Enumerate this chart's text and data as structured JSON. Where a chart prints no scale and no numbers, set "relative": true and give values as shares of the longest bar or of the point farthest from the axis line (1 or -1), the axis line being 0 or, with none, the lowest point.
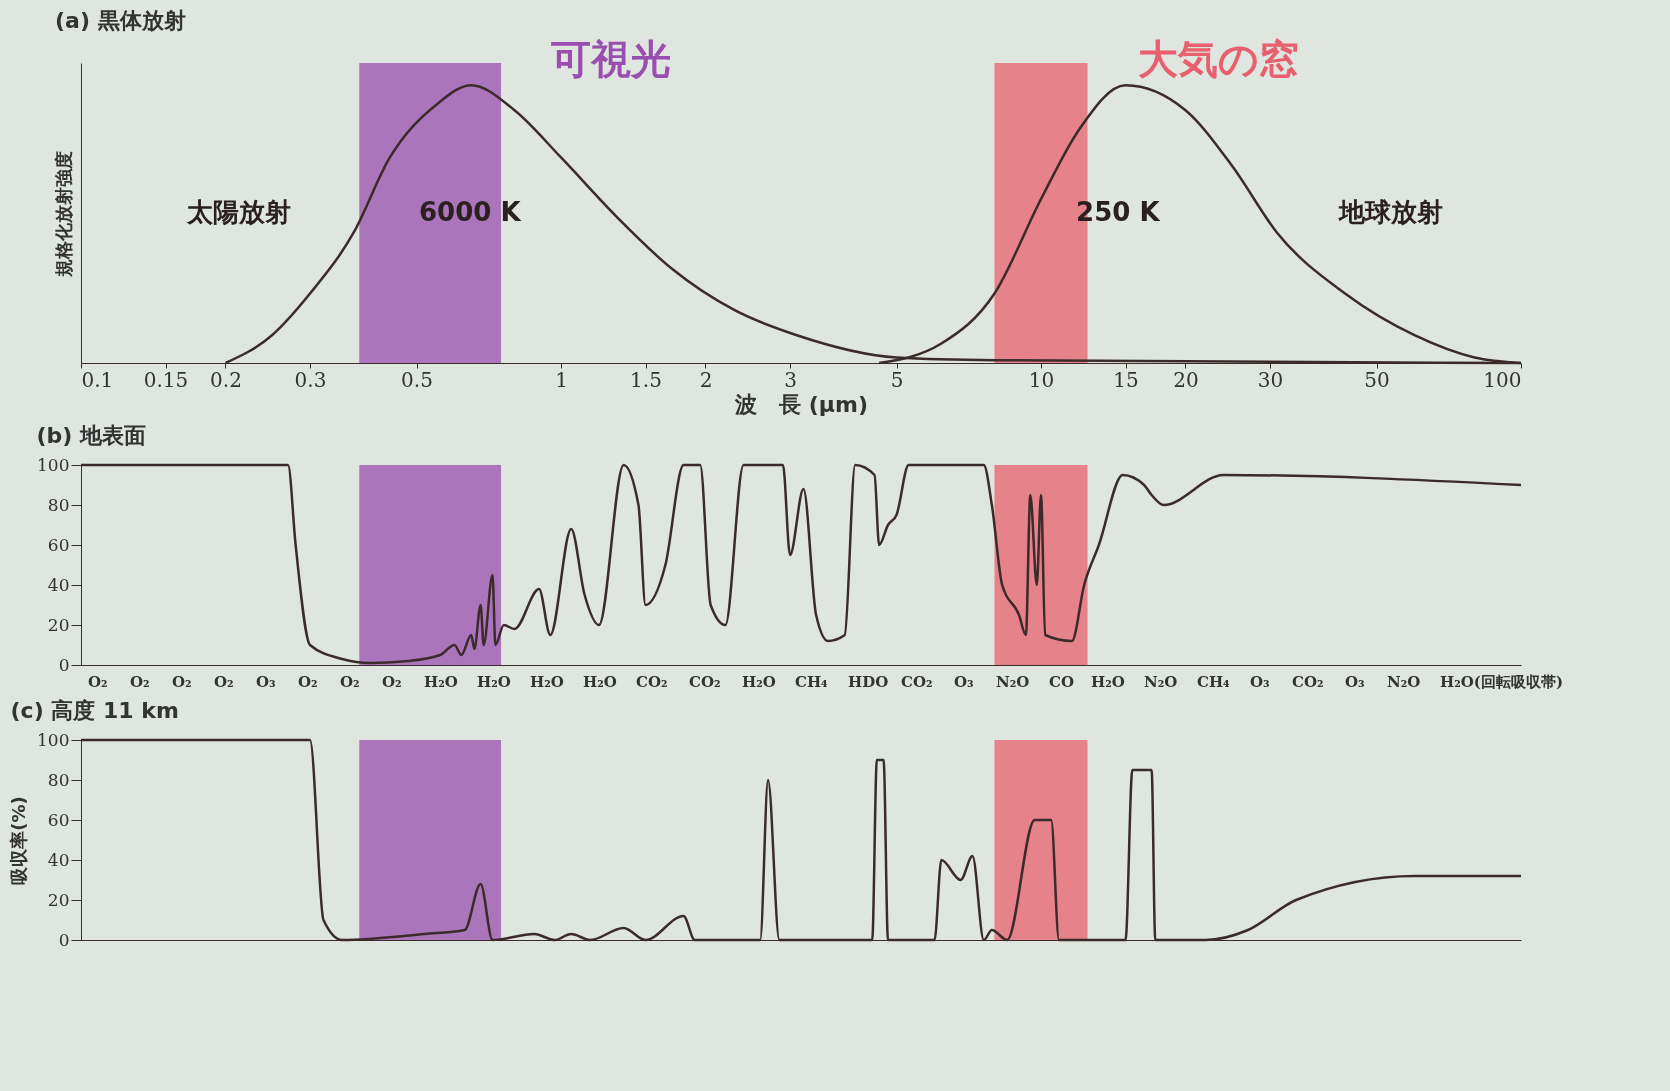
{
  "chart_data": [
    {
      "type": "line",
      "title": "(a) 黒体放射",
      "xlabel": "波　長 (μm)",
      "ylabel": "規格化放射強度",
      "relative": true,
      "log": "x",
      "grid": false,
      "marker": "none",
      "xlim": [
        0.1,
        100
      ],
      "xticks": [
        0.1,
        0.15,
        0.2,
        0.3,
        0.5,
        1,
        1.5,
        2,
        3,
        5,
        10,
        15,
        20,
        30,
        50,
        100
      ],
      "series": [
        {
          "color": "#3b2b2b",
          "x": [
            0.2,
            0.25,
            0.3,
            0.37,
            0.44,
            0.55,
            0.65,
            0.8,
            1.0,
            1.3,
            1.7,
            2.3,
            3.1,
            5,
            8,
            100
          ],
          "values": [
            0,
            0.1,
            0.25,
            0.47,
            0.74,
            0.93,
            1.0,
            0.91,
            0.74,
            0.53,
            0.34,
            0.19,
            0.1,
            0.02,
            0.01,
            0
          ]
        },
        {
          "color": "#3b2b2b",
          "x": [
            4.6,
            6.2,
            8,
            10,
            12,
            15,
            20,
            25,
            31,
            43,
            60,
            80,
            100
          ],
          "values": [
            0,
            0.07,
            0.25,
            0.59,
            0.84,
            1.0,
            0.91,
            0.71,
            0.47,
            0.25,
            0.1,
            0.02,
            0
          ]
        }
      ],
      "bands": [
        {
          "axis": "x",
          "from": 0.38,
          "to": 0.75,
          "label": "可視光",
          "color": "#9a4fb0"
        },
        {
          "axis": "x",
          "from": 8,
          "to": 12.5,
          "label": "大気の窓",
          "color": "#e8606e"
        }
      ],
      "annotations": [
        "太陽放射",
        "6000 K",
        "250 K",
        "地球放射"
      ]
    },
    {
      "type": "line",
      "title": "(b) 地表面",
      "log": "x",
      "grid": false,
      "marker": "none",
      "tick_labels": "y",
      "xlim": [
        0.1,
        100
      ],
      "ylim": [
        0,
        100
      ],
      "yticks": [
        0,
        20,
        40,
        60,
        80,
        100
      ],
      "series": [
        {
          "color": "#3b2b2b",
          "x": [
            0.1,
            0.27,
            0.28,
            0.3,
            0.35,
            0.4,
            0.48,
            0.56,
            0.6,
            0.62,
            0.65,
            0.66,
            0.68,
            0.69,
            0.72,
            0.73,
            0.76,
            0.8,
            0.9,
            0.95,
            1.05,
            1.12,
            1.2,
            1.35,
            1.45,
            1.5,
            1.65,
            1.8,
            1.95,
            2.05,
            2.2,
            2.4,
            2.9,
            3.0,
            3.2,
            3.4,
            3.6,
            3.9,
            4.1,
            4.5,
            4.6,
            4.8,
            5,
            5.3,
            7.6,
            7.9,
            8.3,
            9,
            9.3,
            9.5,
            9.8,
            10,
            10.2,
            11.6,
            12.3,
            13.2,
            14.8,
            16.4,
            17,
            18,
            24,
            100
          ],
          "values": [
            100,
            100,
            60,
            10,
            3,
            1,
            2,
            5,
            10,
            5,
            15,
            8,
            30,
            10,
            45,
            10,
            20,
            18,
            38,
            15,
            68,
            35,
            20,
            100,
            80,
            30,
            50,
            100,
            100,
            30,
            20,
            100,
            100,
            55,
            88,
            25,
            12,
            15,
            100,
            95,
            60,
            70,
            75,
            100,
            100,
            80,
            40,
            25,
            15,
            85,
            40,
            85,
            15,
            12,
            40,
            60,
            95,
            90,
            85,
            80,
            95,
            90
          ]
        }
      ],
      "bands": [
        {
          "axis": "x",
          "from": 0.38,
          "to": 0.75,
          "color": "#9a4fb0"
        },
        {
          "axis": "x",
          "from": 8,
          "to": 12.5,
          "color": "#e8606e"
        }
      ],
      "annotations": [
        "O₂",
        "O₂",
        "O₂",
        "O₂",
        "O₃",
        "O₂",
        "O₂",
        "O₂",
        "H₂O",
        "H₂O",
        "H₂O",
        "H₂O",
        "CO₂",
        "CO₂",
        "H₂O",
        "CH₄",
        "HDO",
        "CO₂",
        "O₃",
        "N₂O",
        "CO",
        "H₂O",
        "N₂O",
        "CH₄",
        "O₃",
        "CO₂",
        "O₃",
        "N₂O",
        "H₂O(回転吸収帯)"
      ]
    },
    {
      "type": "line",
      "title": "(c) 高度 11 km",
      "ylabel": "吸収率(%)",
      "log": "x",
      "grid": false,
      "marker": "none",
      "tick_labels": "y",
      "xlim": [
        0.1,
        100
      ],
      "ylim": [
        0,
        100
      ],
      "yticks": [
        0,
        20,
        40,
        60,
        80,
        100
      ],
      "series": [
        {
          "color": "#3b2b2b",
          "x": [
            0.1,
            0.3,
            0.32,
            0.35,
            0.52,
            0.63,
            0.68,
            0.72,
            0.88,
            0.97,
            1.05,
            1.15,
            1.35,
            1.5,
            1.8,
            1.9,
            2.6,
            2.7,
            2.85,
            4.45,
            4.55,
            4.7,
            4.8,
            6,
            6.2,
            6.8,
            7.2,
            7.6,
            7.9,
            8.5,
            9.7,
            10,
            10.5,
            10.9,
            15,
            15.5,
            17,
            17.3,
            22,
            27,
            34,
            60,
            100
          ],
          "values": [
            100,
            100,
            10,
            0,
            3,
            5,
            28,
            0,
            3,
            0,
            3,
            0,
            6,
            0,
            12,
            0,
            0,
            80,
            0,
            0,
            90,
            90,
            0,
            0,
            40,
            30,
            42,
            0,
            5,
            0,
            60,
            60,
            60,
            0,
            0,
            85,
            85,
            0,
            0,
            5,
            20,
            32,
            32
          ]
        }
      ],
      "bands": [
        {
          "axis": "x",
          "from": 0.38,
          "to": 0.75,
          "color": "#9a4fb0"
        },
        {
          "axis": "x",
          "from": 8,
          "to": 12.5,
          "color": "#e8606e"
        }
      ]
    }
  ]
}
